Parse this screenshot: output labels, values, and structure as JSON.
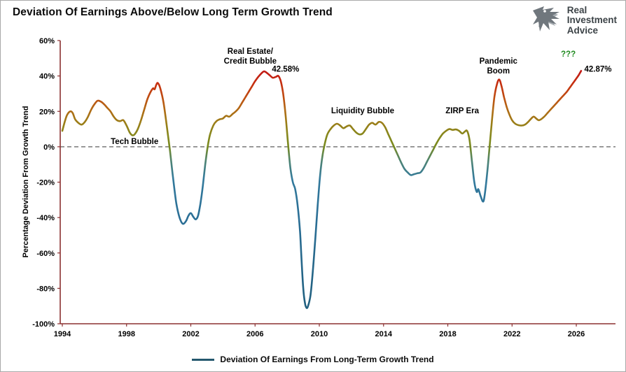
{
  "header": {
    "title": "Deviation Of Earnings Above/Below Long Term Growth Trend",
    "logo": {
      "line1": "Real",
      "line2": "Investment",
      "line3": "Advice"
    }
  },
  "chart_data": {
    "type": "line",
    "title": "Deviation Of Earnings Above/Below Long Term Growth Trend",
    "xlabel": "",
    "ylabel": "Percentage Deviation From Growth Trend",
    "ylim": [
      -100,
      60
    ],
    "xlim": [
      1993.87,
      2028.44
    ],
    "yticks": [
      60,
      40,
      20,
      0,
      -20,
      -40,
      -60,
      -80,
      -100
    ],
    "xticks": [
      1994,
      1998,
      2002,
      2006,
      2010,
      2014,
      2018,
      2022,
      2026
    ],
    "grid": "off",
    "zero_line": 0,
    "legend": {
      "label": "Deviation Of Earnings From Long-Term Growth Trend",
      "position": "bottom-center",
      "line_color": "#24586e"
    },
    "colors": {
      "axis": "#8b3030",
      "zero_line": "#8c8c8c",
      "annotation": "#000000",
      "question_green": "#1f8a1f",
      "gradient_stops": [
        {
          "value": 60,
          "color": "#b0121b"
        },
        {
          "value": 44,
          "color": "#c01616"
        },
        {
          "value": 36,
          "color": "#c62e10"
        },
        {
          "value": 28,
          "color": "#bf4e12"
        },
        {
          "value": 21,
          "color": "#b26a15"
        },
        {
          "value": 14,
          "color": "#9d7d18"
        },
        {
          "value": 7,
          "color": "#87871c"
        },
        {
          "value": 0,
          "color": "#788a20"
        },
        {
          "value": -8,
          "color": "#4f8473"
        },
        {
          "value": -18,
          "color": "#337a9c"
        },
        {
          "value": -40,
          "color": "#2b6f96"
        },
        {
          "value": -100,
          "color": "#1f5d7b"
        }
      ]
    },
    "series": [
      {
        "name": "Deviation Of Earnings From Long-Term Growth Trend",
        "points": [
          [
            1994.0,
            9
          ],
          [
            1994.15,
            14
          ],
          [
            1994.3,
            18
          ],
          [
            1994.5,
            20
          ],
          [
            1994.65,
            19
          ],
          [
            1994.8,
            15.5
          ],
          [
            1995.0,
            13.5
          ],
          [
            1995.2,
            12.5
          ],
          [
            1995.4,
            14
          ],
          [
            1995.6,
            17
          ],
          [
            1995.8,
            21
          ],
          [
            1996.0,
            24
          ],
          [
            1996.2,
            26
          ],
          [
            1996.4,
            25.5
          ],
          [
            1996.6,
            24
          ],
          [
            1996.8,
            22
          ],
          [
            1997.0,
            20
          ],
          [
            1997.2,
            17
          ],
          [
            1997.4,
            15
          ],
          [
            1997.6,
            14.5
          ],
          [
            1997.8,
            15
          ],
          [
            1998.0,
            12
          ],
          [
            1998.2,
            8
          ],
          [
            1998.35,
            6.5
          ],
          [
            1998.5,
            7
          ],
          [
            1998.7,
            10
          ],
          [
            1998.9,
            15
          ],
          [
            1999.1,
            21
          ],
          [
            1999.3,
            27
          ],
          [
            1999.5,
            31
          ],
          [
            1999.65,
            33
          ],
          [
            1999.75,
            32.5
          ],
          [
            1999.85,
            35
          ],
          [
            1999.95,
            36
          ],
          [
            2000.1,
            33
          ],
          [
            2000.3,
            25
          ],
          [
            2000.5,
            12
          ],
          [
            2000.7,
            -2
          ],
          [
            2000.9,
            -18
          ],
          [
            2001.1,
            -32
          ],
          [
            2001.3,
            -40
          ],
          [
            2001.5,
            -43.5
          ],
          [
            2001.7,
            -42
          ],
          [
            2001.85,
            -39
          ],
          [
            2002.0,
            -37.5
          ],
          [
            2002.15,
            -39.5
          ],
          [
            2002.3,
            -41
          ],
          [
            2002.45,
            -39
          ],
          [
            2002.6,
            -32
          ],
          [
            2002.75,
            -22
          ],
          [
            2002.9,
            -10
          ],
          [
            2003.05,
            0
          ],
          [
            2003.2,
            7
          ],
          [
            2003.4,
            12
          ],
          [
            2003.6,
            14.5
          ],
          [
            2003.8,
            15.5
          ],
          [
            2004.0,
            16
          ],
          [
            2004.2,
            17.5
          ],
          [
            2004.4,
            17
          ],
          [
            2004.6,
            18.5
          ],
          [
            2004.8,
            20
          ],
          [
            2005.0,
            22
          ],
          [
            2005.2,
            25
          ],
          [
            2005.4,
            28
          ],
          [
            2005.6,
            31
          ],
          [
            2005.8,
            34
          ],
          [
            2006.0,
            37
          ],
          [
            2006.2,
            39.5
          ],
          [
            2006.4,
            41.5
          ],
          [
            2006.55,
            42.58
          ],
          [
            2006.7,
            42
          ],
          [
            2006.9,
            40.5
          ],
          [
            2007.1,
            39
          ],
          [
            2007.3,
            39.5
          ],
          [
            2007.45,
            40
          ],
          [
            2007.6,
            37
          ],
          [
            2007.75,
            30
          ],
          [
            2007.9,
            18
          ],
          [
            2008.05,
            2
          ],
          [
            2008.2,
            -12
          ],
          [
            2008.35,
            -20
          ],
          [
            2008.5,
            -24
          ],
          [
            2008.65,
            -33
          ],
          [
            2008.8,
            -48
          ],
          [
            2008.9,
            -65
          ],
          [
            2009.0,
            -80
          ],
          [
            2009.1,
            -88
          ],
          [
            2009.2,
            -91
          ],
          [
            2009.3,
            -90
          ],
          [
            2009.45,
            -84
          ],
          [
            2009.6,
            -70
          ],
          [
            2009.75,
            -52
          ],
          [
            2009.9,
            -33
          ],
          [
            2010.05,
            -16
          ],
          [
            2010.2,
            -5
          ],
          [
            2010.35,
            2
          ],
          [
            2010.5,
            7
          ],
          [
            2010.7,
            10
          ],
          [
            2010.9,
            12
          ],
          [
            2011.1,
            13
          ],
          [
            2011.3,
            12
          ],
          [
            2011.5,
            10.5
          ],
          [
            2011.7,
            11.5
          ],
          [
            2011.9,
            12
          ],
          [
            2012.1,
            10
          ],
          [
            2012.3,
            8
          ],
          [
            2012.5,
            7
          ],
          [
            2012.7,
            7.5
          ],
          [
            2012.9,
            10
          ],
          [
            2013.1,
            12.5
          ],
          [
            2013.3,
            13.5
          ],
          [
            2013.5,
            12.5
          ],
          [
            2013.7,
            14
          ],
          [
            2013.9,
            13.5
          ],
          [
            2014.1,
            11
          ],
          [
            2014.3,
            7
          ],
          [
            2014.5,
            3
          ],
          [
            2014.7,
            -1
          ],
          [
            2014.9,
            -5
          ],
          [
            2015.1,
            -9
          ],
          [
            2015.3,
            -12.5
          ],
          [
            2015.5,
            -14.5
          ],
          [
            2015.7,
            -16
          ],
          [
            2015.9,
            -15.5
          ],
          [
            2016.1,
            -15
          ],
          [
            2016.3,
            -14.5
          ],
          [
            2016.5,
            -12
          ],
          [
            2016.7,
            -8.5
          ],
          [
            2016.9,
            -5
          ],
          [
            2017.1,
            -1.5
          ],
          [
            2017.3,
            2
          ],
          [
            2017.5,
            5
          ],
          [
            2017.7,
            7.5
          ],
          [
            2017.9,
            9
          ],
          [
            2018.1,
            10
          ],
          [
            2018.3,
            9.5
          ],
          [
            2018.5,
            9.8
          ],
          [
            2018.7,
            9
          ],
          [
            2018.9,
            7.5
          ],
          [
            2019.05,
            8.5
          ],
          [
            2019.2,
            9
          ],
          [
            2019.35,
            4
          ],
          [
            2019.5,
            -8
          ],
          [
            2019.65,
            -20
          ],
          [
            2019.8,
            -25.5
          ],
          [
            2019.9,
            -24
          ],
          [
            2020.05,
            -28
          ],
          [
            2020.2,
            -31
          ],
          [
            2020.3,
            -27
          ],
          [
            2020.45,
            -15
          ],
          [
            2020.6,
            0
          ],
          [
            2020.75,
            15
          ],
          [
            2020.9,
            28
          ],
          [
            2021.05,
            35
          ],
          [
            2021.2,
            38
          ],
          [
            2021.35,
            34
          ],
          [
            2021.5,
            28
          ],
          [
            2021.65,
            23
          ],
          [
            2021.8,
            19
          ],
          [
            2022.0,
            15
          ],
          [
            2022.2,
            13
          ],
          [
            2022.4,
            12.2
          ],
          [
            2022.6,
            12
          ],
          [
            2022.8,
            12.5
          ],
          [
            2023.0,
            14
          ],
          [
            2023.2,
            16
          ],
          [
            2023.35,
            17
          ],
          [
            2023.5,
            16
          ],
          [
            2023.65,
            15
          ],
          [
            2023.8,
            15.5
          ],
          [
            2024.0,
            17
          ],
          [
            2024.2,
            19
          ],
          [
            2024.4,
            21
          ],
          [
            2024.6,
            23
          ],
          [
            2024.8,
            25
          ],
          [
            2025.0,
            27
          ],
          [
            2025.2,
            29
          ],
          [
            2025.4,
            31
          ],
          [
            2025.6,
            33.5
          ],
          [
            2025.8,
            36
          ],
          [
            2026.0,
            38.5
          ],
          [
            2026.15,
            40.5
          ],
          [
            2026.3,
            42.87
          ]
        ]
      }
    ],
    "annotations": [
      {
        "text": "Tech Bubble",
        "x": 1998.5,
        "y": 1.5,
        "anchor": "middle",
        "color": "#000000"
      },
      {
        "text": "Real Estate/\nCredit Bubble",
        "x": 2005.7,
        "y": 52.5,
        "anchor": "middle",
        "color": "#000000"
      },
      {
        "text": "42.58%",
        "x": 2007.9,
        "y": 42.5,
        "anchor": "middle",
        "color": "#000000"
      },
      {
        "text": "Liquidity Bubble",
        "x": 2012.7,
        "y": 19,
        "anchor": "middle",
        "color": "#000000"
      },
      {
        "text": "ZIRP Era",
        "x": 2018.9,
        "y": 19,
        "anchor": "middle",
        "color": "#000000"
      },
      {
        "text": "Pandemic\nBoom",
        "x": 2021.15,
        "y": 47,
        "anchor": "middle",
        "color": "#000000"
      },
      {
        "text": "???",
        "x": 2025.5,
        "y": 51,
        "anchor": "middle",
        "color": "#1f8a1f",
        "size": 13
      },
      {
        "text": "42.87%",
        "x": 2026.5,
        "y": 42.5,
        "anchor": "start",
        "color": "#000000"
      }
    ]
  }
}
